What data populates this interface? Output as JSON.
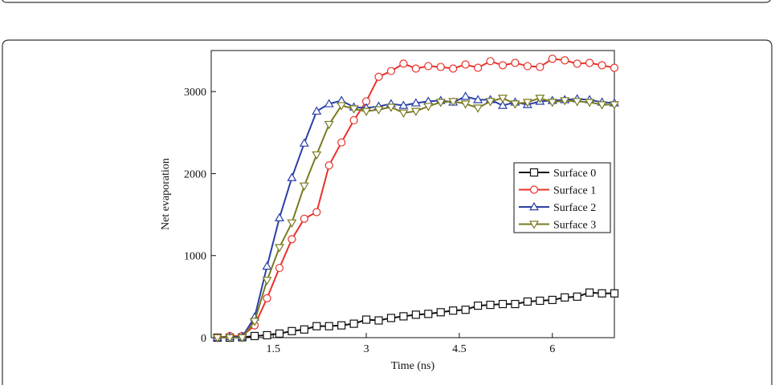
{
  "chart_data": {
    "type": "line",
    "x_label": "Time (ns)",
    "y_label": "Net evaporation",
    "x": [
      0.6,
      0.8,
      1.0,
      1.2,
      1.4,
      1.6,
      1.8,
      2.0,
      2.2,
      2.4,
      2.6,
      2.8,
      3.0,
      3.2,
      3.4,
      3.6,
      3.8,
      4.0,
      4.2,
      4.4,
      4.6,
      4.8,
      5.0,
      5.2,
      5.4,
      5.6,
      5.8,
      6.0,
      6.2,
      6.4,
      6.6,
      6.8,
      7.0
    ],
    "series": [
      {
        "name": "Surface 0",
        "color": "#111111",
        "marker": "square",
        "values": [
          0,
          0,
          5,
          20,
          30,
          50,
          80,
          100,
          140,
          140,
          150,
          170,
          220,
          210,
          240,
          260,
          280,
          290,
          310,
          330,
          340,
          390,
          400,
          410,
          410,
          440,
          450,
          460,
          490,
          500,
          550,
          540,
          540
        ]
      },
      {
        "name": "Surface 1",
        "color": "#e8312a",
        "marker": "circle",
        "values": [
          0,
          20,
          20,
          150,
          480,
          850,
          1200,
          1450,
          1530,
          2100,
          2380,
          2650,
          2880,
          3180,
          3250,
          3340,
          3280,
          3310,
          3300,
          3280,
          3330,
          3290,
          3370,
          3320,
          3350,
          3310,
          3300,
          3400,
          3380,
          3340,
          3350,
          3320,
          3290
        ]
      },
      {
        "name": "Surface 2",
        "color": "#2a3fa8",
        "marker": "triangle-up",
        "values": [
          0,
          10,
          10,
          250,
          870,
          1460,
          1950,
          2370,
          2760,
          2850,
          2890,
          2810,
          2800,
          2820,
          2850,
          2830,
          2860,
          2880,
          2890,
          2870,
          2940,
          2900,
          2900,
          2830,
          2870,
          2840,
          2880,
          2890,
          2900,
          2910,
          2900,
          2870,
          2860
        ]
      },
      {
        "name": "Surface 3",
        "color": "#7a7a22",
        "marker": "triangle-down",
        "values": [
          0,
          0,
          0,
          200,
          700,
          1100,
          1400,
          1850,
          2230,
          2600,
          2830,
          2790,
          2760,
          2780,
          2810,
          2740,
          2760,
          2820,
          2870,
          2880,
          2850,
          2800,
          2880,
          2920,
          2850,
          2870,
          2920,
          2870,
          2890,
          2880,
          2870,
          2840,
          2840
        ]
      }
    ],
    "xlim": [
      0.5,
      7.0
    ],
    "xticks": [
      1.5,
      3.0,
      4.5,
      6.0
    ],
    "ylim": [
      0,
      3500
    ],
    "yticks": [
      0,
      1000,
      2000,
      3000
    ],
    "legend": "right"
  }
}
